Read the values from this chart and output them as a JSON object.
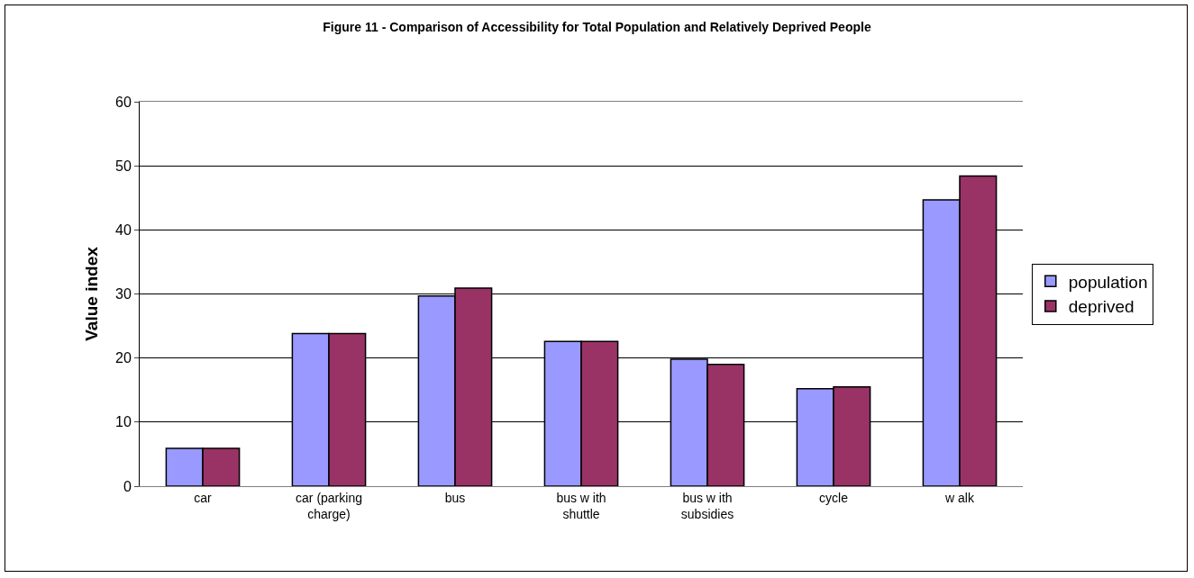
{
  "chart_data": {
    "type": "bar",
    "title": "Figure 11 - Comparison of Accessibility for Total Population and Relatively Deprived People",
    "ylabel": "Value index",
    "categories": [
      "car",
      "car (parking\ncharge)",
      "bus",
      "bus w ith\nshuttle",
      "bus w ith\nsubsidies",
      "cycle",
      "w alk"
    ],
    "series": [
      {
        "name": "population",
        "color": "#9999ff",
        "values": [
          5.9,
          23.8,
          29.7,
          22.6,
          19.8,
          15.2,
          44.7
        ]
      },
      {
        "name": "deprived",
        "color": "#993366",
        "values": [
          5.9,
          23.8,
          30.9,
          22.6,
          19.0,
          15.5,
          48.4
        ]
      }
    ],
    "ylim": [
      0,
      60
    ],
    "yticks": [
      0,
      10,
      20,
      30,
      40,
      50,
      60
    ],
    "grid": "y",
    "legend": "right"
  }
}
